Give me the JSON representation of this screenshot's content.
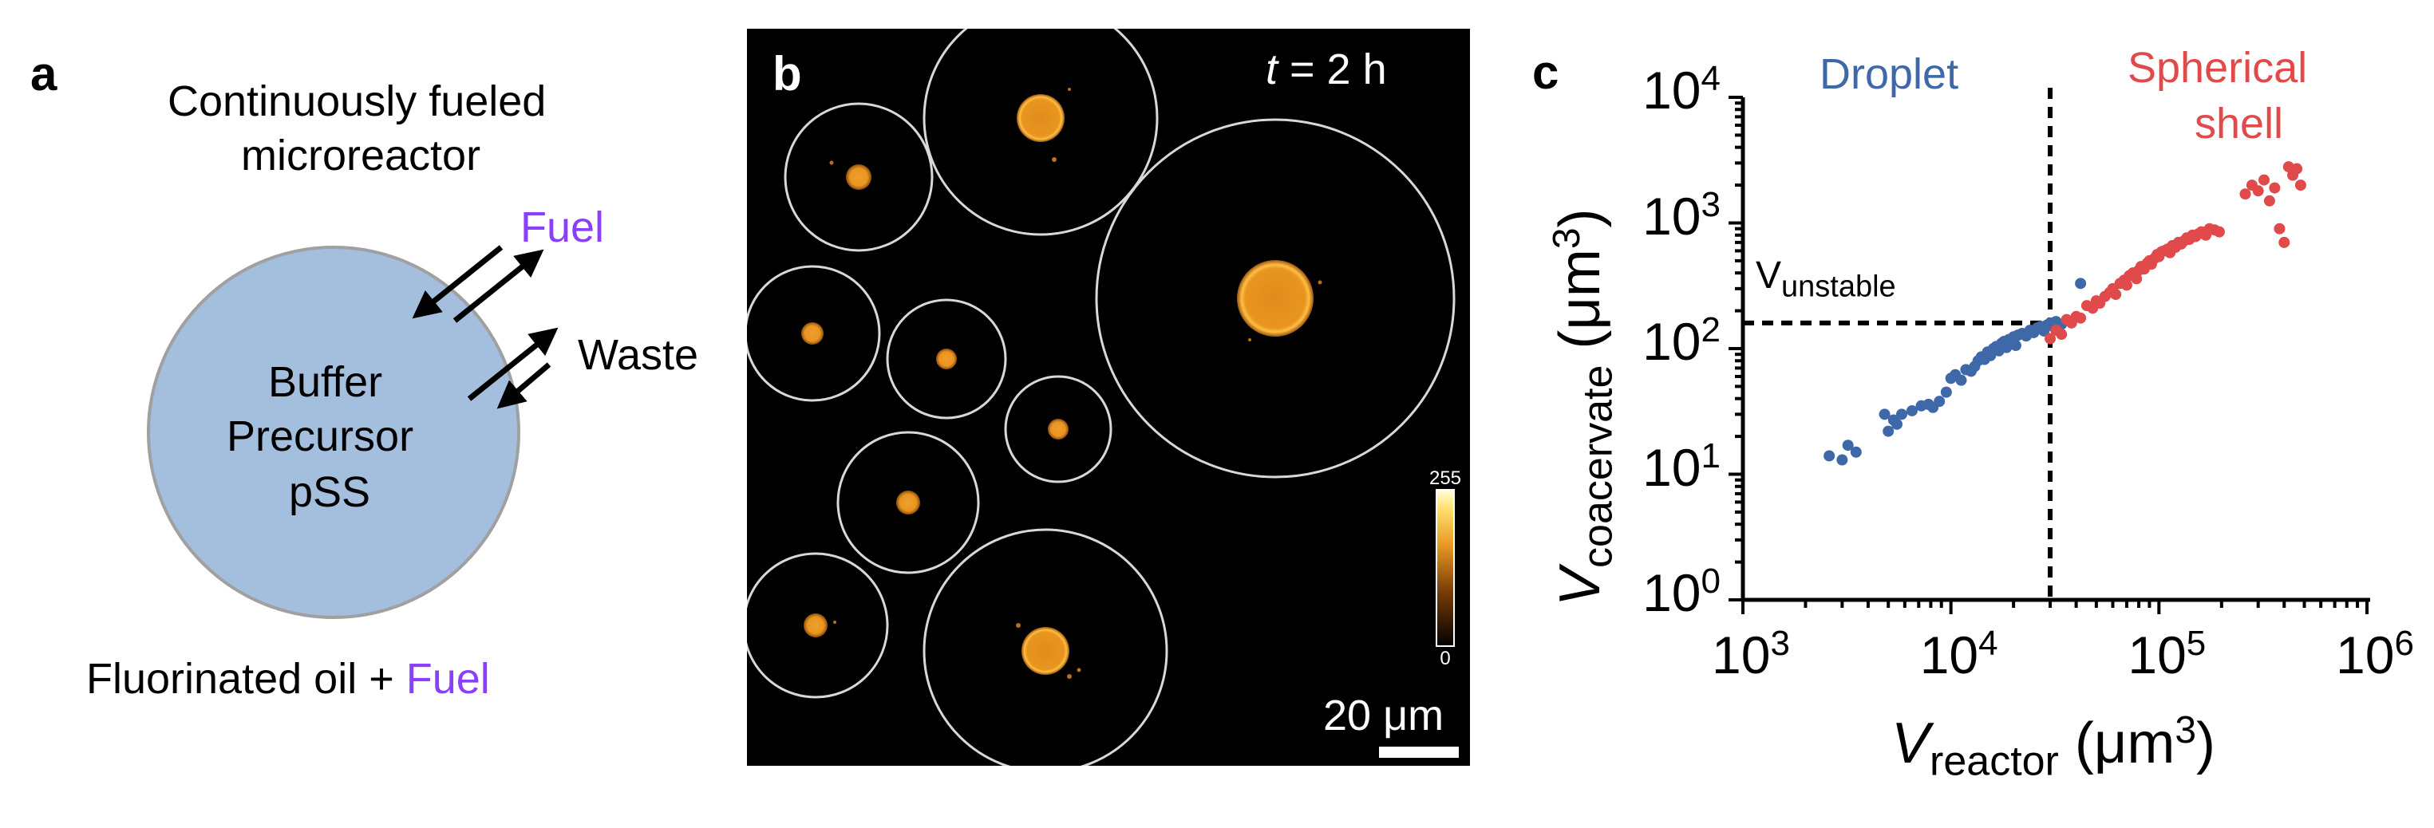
{
  "colors": {
    "reactor_fill": "#a3bfdd",
    "reactor_stroke": "#a0a0a0",
    "fuel": "#8a3ffc",
    "droplet": "#3e68a8",
    "shell": "#e04a4a",
    "micrograph_bg": "#000000",
    "coacervate": "#f2a12a"
  },
  "panel_a": {
    "letter": "a",
    "title_line1": "Continuously fueled",
    "title_line2": "microreactor",
    "fuel_label": "Fuel",
    "waste_label": "Waste",
    "contents": [
      "Buffer",
      "Precursor",
      "pSS"
    ],
    "oil_label": "Fluorinated oil + ",
    "oil_fuel": "Fuel"
  },
  "panel_b": {
    "letter": "b",
    "time_var": "t",
    "time_rest": " = 2 h",
    "scalebar": "20 μm",
    "colorbar_max": "255",
    "colorbar_min": "0"
  },
  "panel_c": {
    "letter": "c",
    "droplet_label": "Droplet",
    "shell_label_line1": "Spherical",
    "shell_label_line2": "shell",
    "unstable_main": "V",
    "unstable_sub": "unstable",
    "x_tick_base": [
      "10",
      "10",
      "10",
      "10"
    ],
    "x_tick_exp": [
      "3",
      "4",
      "5",
      "6"
    ],
    "y_tick_base": [
      "10",
      "10",
      "10",
      "10",
      "10"
    ],
    "y_tick_exp": [
      "0",
      "1",
      "2",
      "3",
      "4"
    ],
    "xlabel_main": "V",
    "xlabel_sub": "reactor",
    "xlabel_unit": " (μm",
    "xlabel_exp": "3",
    "xlabel_close": ")",
    "ylabel_main": "V",
    "ylabel_sub": "coacervate",
    "ylabel_unit": " (μm",
    "ylabel_exp": "3",
    "ylabel_close": ")"
  },
  "chart_data": {
    "type": "scatter",
    "x_scale": "log",
    "y_scale": "log",
    "xlim": [
      1000,
      1000000
    ],
    "ylim": [
      1,
      10000
    ],
    "grid": false,
    "threshold_x": 30000,
    "threshold_y": 160,
    "series": [
      {
        "name": "Droplet",
        "points": [
          [
            2600,
            14
          ],
          [
            3000,
            13
          ],
          [
            3200,
            17
          ],
          [
            3500,
            15
          ],
          [
            4800,
            30
          ],
          [
            5000,
            22
          ],
          [
            5300,
            27
          ],
          [
            5500,
            25
          ],
          [
            5800,
            30
          ],
          [
            6500,
            32
          ],
          [
            7200,
            35
          ],
          [
            7800,
            36
          ],
          [
            8200,
            34
          ],
          [
            8800,
            38
          ],
          [
            9500,
            45
          ],
          [
            10000,
            58
          ],
          [
            10500,
            62
          ],
          [
            11200,
            56
          ],
          [
            11800,
            68
          ],
          [
            12500,
            66
          ],
          [
            13000,
            72
          ],
          [
            13500,
            80
          ],
          [
            14000,
            86
          ],
          [
            14500,
            82
          ],
          [
            15000,
            94
          ],
          [
            15500,
            88
          ],
          [
            16000,
            100
          ],
          [
            16500,
            104
          ],
          [
            17000,
            96
          ],
          [
            17500,
            110
          ],
          [
            18000,
            114
          ],
          [
            18500,
            102
          ],
          [
            19000,
            118
          ],
          [
            19500,
            112
          ],
          [
            20000,
            124
          ],
          [
            20500,
            106
          ],
          [
            21000,
            128
          ],
          [
            22000,
            132
          ],
          [
            23000,
            126
          ],
          [
            24000,
            140
          ],
          [
            25000,
            134
          ],
          [
            26000,
            146
          ],
          [
            27000,
            150
          ],
          [
            28000,
            138
          ],
          [
            29000,
            154
          ],
          [
            30000,
            160
          ],
          [
            31000,
            150
          ],
          [
            32000,
            164
          ],
          [
            34000,
            156
          ],
          [
            36000,
            170
          ],
          [
            42000,
            330
          ]
        ]
      },
      {
        "name": "Spherical shell",
        "points": [
          [
            30000,
            120
          ],
          [
            32000,
            140
          ],
          [
            34000,
            130
          ],
          [
            36000,
            170
          ],
          [
            38000,
            160
          ],
          [
            40000,
            180
          ],
          [
            42000,
            175
          ],
          [
            45000,
            220
          ],
          [
            48000,
            210
          ],
          [
            50000,
            240
          ],
          [
            52000,
            230
          ],
          [
            55000,
            260
          ],
          [
            58000,
            280
          ],
          [
            60000,
            300
          ],
          [
            62000,
            270
          ],
          [
            65000,
            330
          ],
          [
            68000,
            350
          ],
          [
            70000,
            320
          ],
          [
            72000,
            380
          ],
          [
            75000,
            400
          ],
          [
            78000,
            360
          ],
          [
            80000,
            420
          ],
          [
            82000,
            450
          ],
          [
            85000,
            430
          ],
          [
            88000,
            480
          ],
          [
            90000,
            500
          ],
          [
            92000,
            470
          ],
          [
            95000,
            520
          ],
          [
            98000,
            560
          ],
          [
            100000,
            540
          ],
          [
            103000,
            590
          ],
          [
            106000,
            600
          ],
          [
            110000,
            620
          ],
          [
            113000,
            580
          ],
          [
            116000,
            660
          ],
          [
            120000,
            640
          ],
          [
            124000,
            700
          ],
          [
            128000,
            680
          ],
          [
            132000,
            720
          ],
          [
            136000,
            760
          ],
          [
            140000,
            740
          ],
          [
            145000,
            800
          ],
          [
            150000,
            780
          ],
          [
            155000,
            820
          ],
          [
            160000,
            850
          ],
          [
            168000,
            800
          ],
          [
            175000,
            900
          ],
          [
            185000,
            880
          ],
          [
            195000,
            850
          ],
          [
            260000,
            1700
          ],
          [
            280000,
            2000
          ],
          [
            300000,
            1800
          ],
          [
            320000,
            2200
          ],
          [
            340000,
            1500
          ],
          [
            360000,
            1900
          ],
          [
            380000,
            900
          ],
          [
            400000,
            700
          ],
          [
            420000,
            2800
          ],
          [
            440000,
            2400
          ],
          [
            460000,
            2700
          ],
          [
            480000,
            2000
          ]
        ]
      }
    ]
  }
}
